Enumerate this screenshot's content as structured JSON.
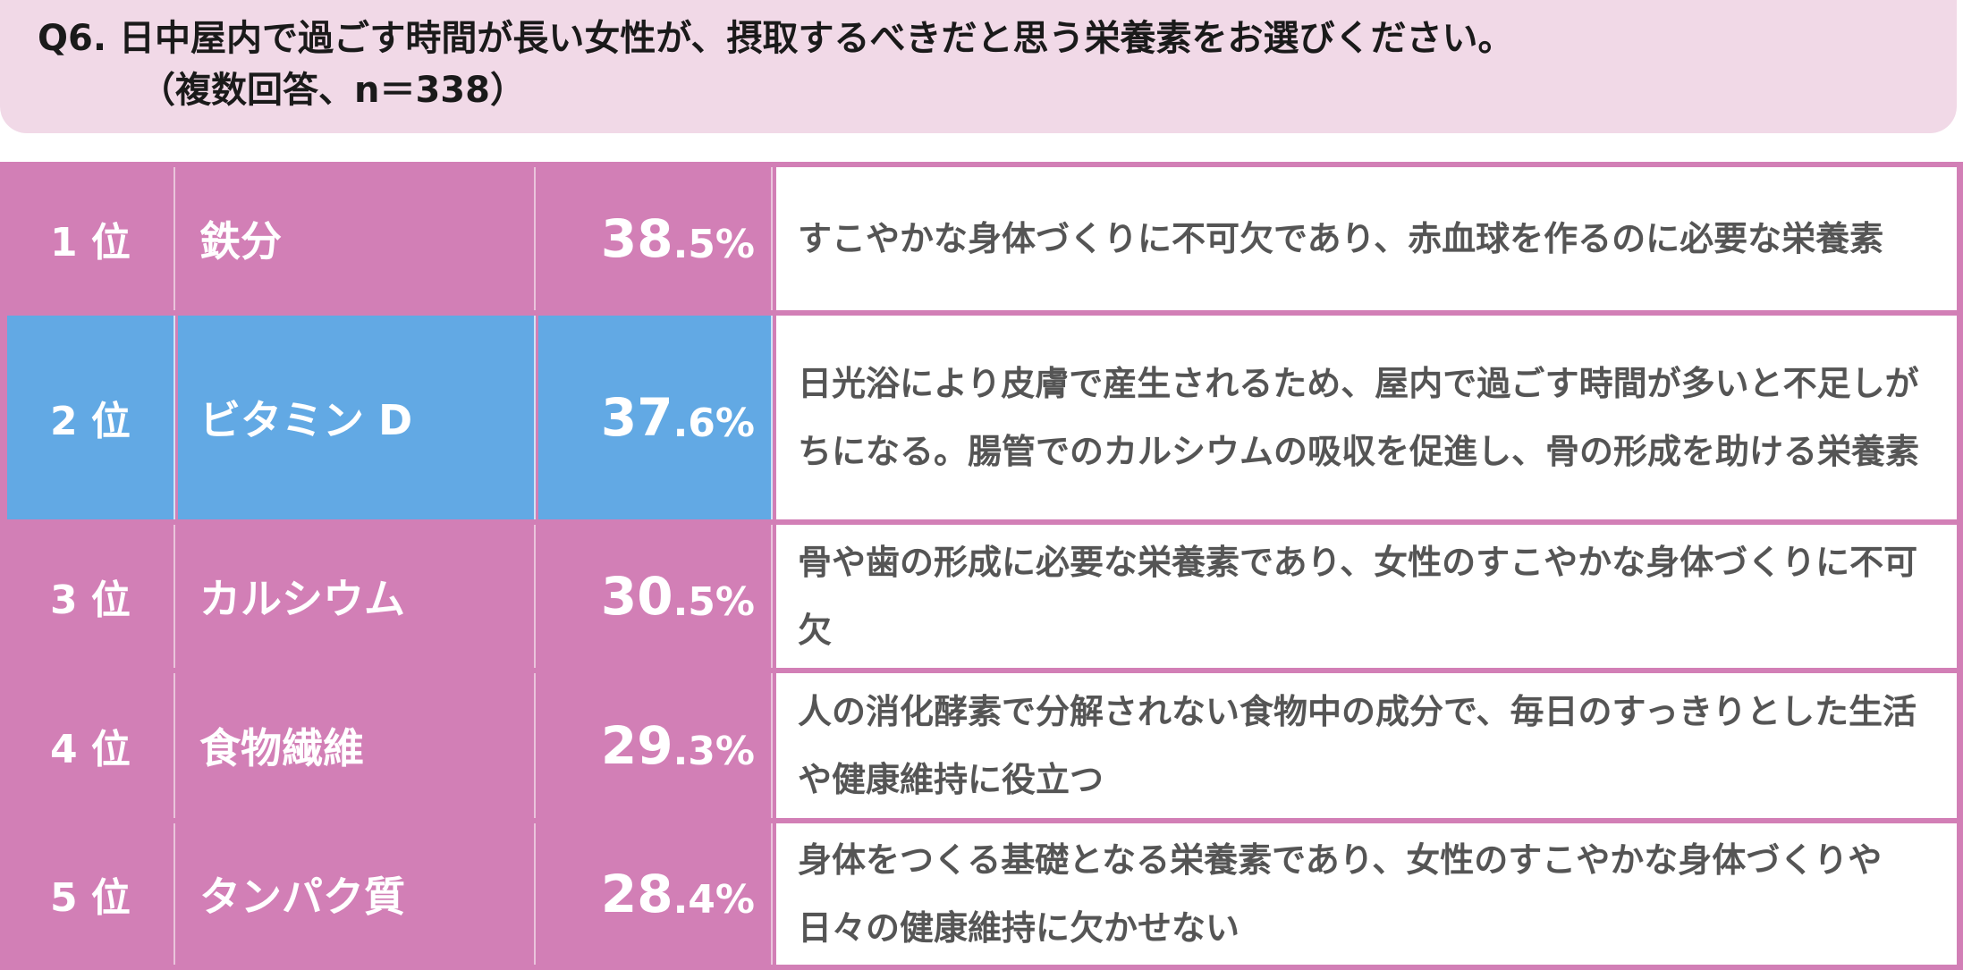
{
  "header": {
    "question": "Q6. 日中屋内で過ごす時間が長い女性が、摂取するべきだと思う栄養素をお選びください。",
    "note": "（複数回答、n＝338）"
  },
  "rows": [
    {
      "rank": "1 位",
      "name": "鉄分",
      "pct_int": "38",
      "pct_dec": ".5%",
      "description": "すこやかな身体づくりに不可欠であり、赤血球を作るのに必要な栄養素"
    },
    {
      "rank": "2 位",
      "name": "ビタミン D",
      "pct_int": "37",
      "pct_dec": ".6%",
      "description": "日光浴により皮膚で産生されるため、屋内で過ごす時間が多いと不足しがちになる。腸管でのカルシウムの吸収を促進し、骨の形成を助ける栄養素"
    },
    {
      "rank": "3 位",
      "name": "カルシウム",
      "pct_int": "30",
      "pct_dec": ".5%",
      "description": "骨や歯の形成に必要な栄養素であり、女性のすこやかな身体づくりに不可欠"
    },
    {
      "rank": "4 位",
      "name": "食物繊維",
      "pct_int": "29",
      "pct_dec": ".3%",
      "description": "人の消化酵素で分解されない食物中の成分で、毎日のすっきりとした生活や健康維持に役立つ"
    },
    {
      "rank": "5 位",
      "name": "タンパク質",
      "pct_int": "28",
      "pct_dec": ".4%",
      "description": "身体をつくる基礎となる栄養素であり、女性のすこやかな身体づくりや日々の健康維持に欠かせない"
    }
  ],
  "colors": {
    "pink": "#d27fb6",
    "highlight_blue": "#62a9e4",
    "header_bg": "#f1d9e7"
  }
}
